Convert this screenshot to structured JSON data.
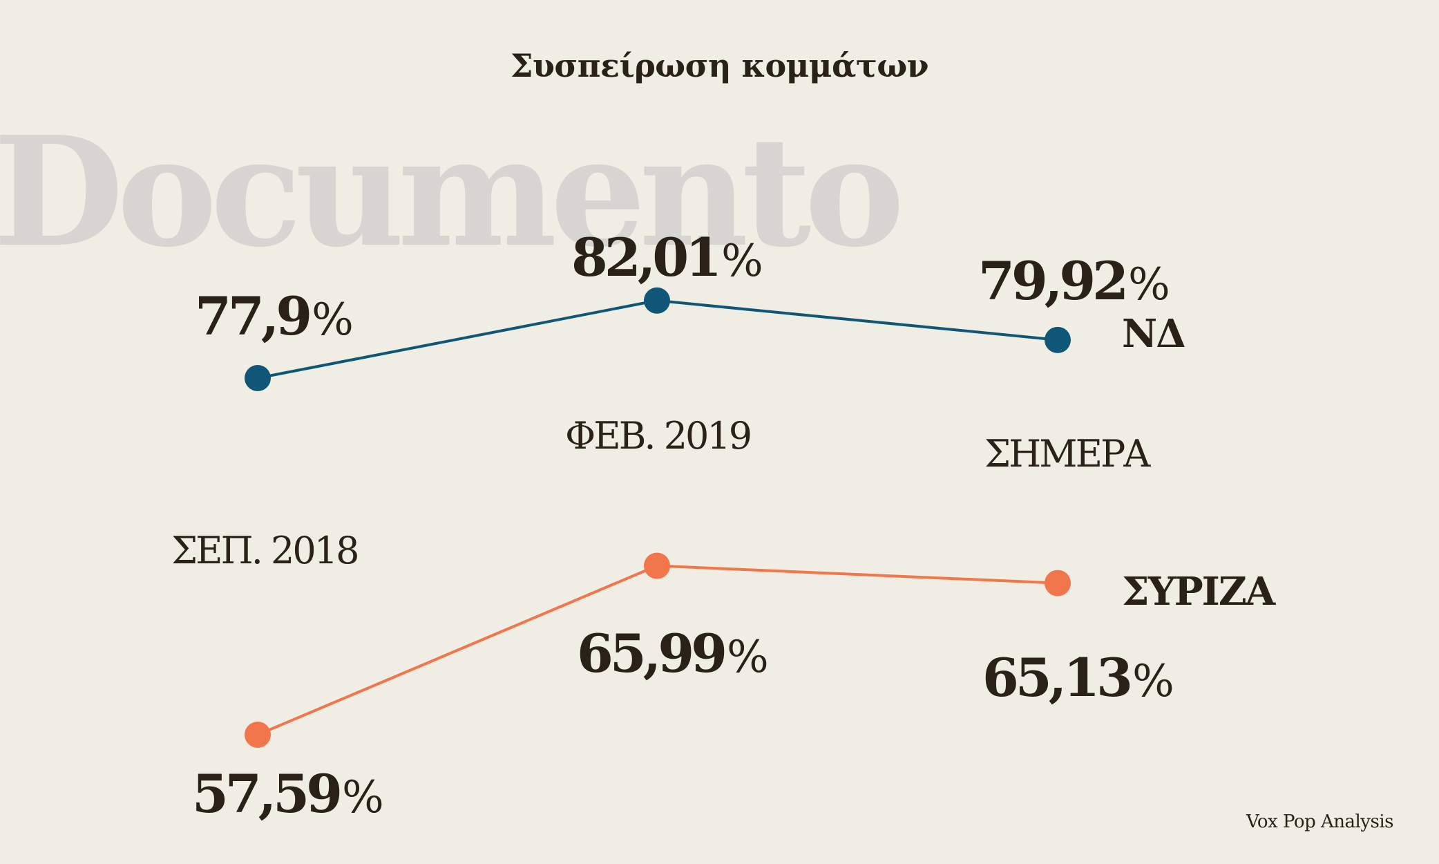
{
  "title": "Συσπείρωση κομμάτων",
  "watermark": "Documento",
  "source": "Vox Pop Analysis",
  "colors": {
    "background": "#efede4",
    "text": "#2a2118",
    "nd": "#0f5677",
    "syriza": "#f2764b",
    "watermark": "#d6d5d1"
  },
  "chart_data": {
    "type": "line",
    "title": "Συσπείρωση κομμάτων",
    "categories": [
      "ΣΕΠ. 2018",
      "ΦΕΒ. 2019",
      "ΣΗΜΕΡΑ"
    ],
    "series": [
      {
        "name": "ΝΔ",
        "values": [
          77.9,
          82.01,
          79.92
        ],
        "labels": [
          "77,9",
          "82,01",
          "79,92"
        ],
        "color": "#0f5677"
      },
      {
        "name": "ΣΥΡΙΖΑ",
        "values": [
          57.59,
          65.99,
          65.13
        ],
        "labels": [
          "57,59",
          "65,99",
          "65,13"
        ],
        "color": "#f2764b"
      }
    ],
    "unit": "%",
    "grid": false,
    "legend": "direct labels at line ends"
  }
}
